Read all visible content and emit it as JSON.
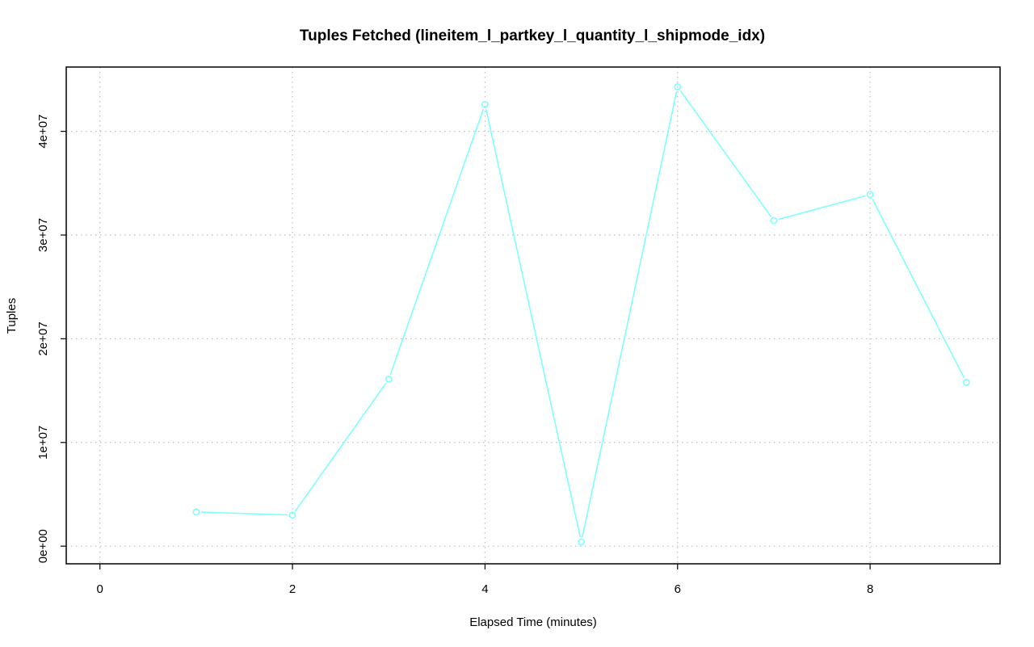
{
  "chart_data": {
    "type": "line",
    "title": "Tuples Fetched (lineitem_l_partkey_l_quantity_l_shipmode_idx)",
    "xlabel": "Elapsed Time (minutes)",
    "ylabel": "Tuples",
    "xlim": [
      -0.35,
      9.35
    ],
    "ylim": [
      -1700000,
      46200000
    ],
    "x_ticks": [
      0,
      2,
      4,
      6,
      8
    ],
    "x_tick_labels": [
      "0",
      "2",
      "4",
      "6",
      "8"
    ],
    "y_ticks": [
      0,
      10000000,
      20000000,
      30000000,
      40000000
    ],
    "y_tick_labels": [
      "0e+00",
      "1e+07",
      "2e+07",
      "3e+07",
      "4e+07"
    ],
    "grid": true,
    "series": [
      {
        "color": "#7fffff",
        "x": [
          1,
          2,
          3,
          4,
          5,
          6,
          7,
          8,
          9
        ],
        "y": [
          3300000,
          3000000,
          16100000,
          42600000,
          400000,
          44300000,
          31400000,
          33900000,
          15800000
        ]
      }
    ]
  }
}
